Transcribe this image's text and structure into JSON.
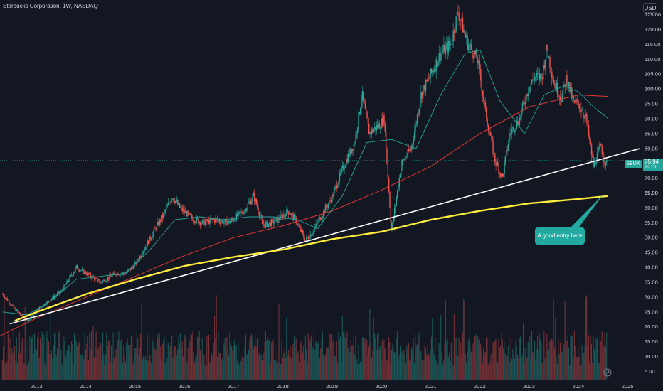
{
  "header": {
    "title": "Starbucks Corporation, 1W, NASDAQ",
    "currency": "USD"
  },
  "price_marker": {
    "symbol": "SBUX",
    "price": "75.94",
    "time": "2d 17h",
    "other_level": "65.00"
  },
  "annotation": {
    "text": "A good entry here"
  },
  "colors": {
    "background": "#131722",
    "up": "#26a69a",
    "down": "#ef5350",
    "ma_short": "#26a69a",
    "ma_long": "#e53935",
    "trendline": "#ffffff",
    "support": "#ffeb3b",
    "callout": "#22a9a0"
  },
  "icons": {
    "replay": "replay-icon"
  },
  "chart_data": {
    "type": "candlestick",
    "title": "Starbucks Corporation, 1W, NASDAQ",
    "xlabel": "",
    "ylabel": "",
    "x_ticks": [
      "2013",
      "2014",
      "2015",
      "2016",
      "2017",
      "2018",
      "2019",
      "2020",
      "2021",
      "2022",
      "2023",
      "2024",
      "2025"
    ],
    "y_ticks": [
      5,
      10,
      15,
      20,
      25,
      30,
      35,
      40,
      45,
      50,
      55,
      60,
      65,
      70,
      75,
      80,
      85,
      90,
      95,
      100,
      105,
      110,
      115,
      120,
      125
    ],
    "ylim": [
      2,
      128
    ],
    "xlim": [
      2012.25,
      2025.25
    ],
    "last_price": 75.94,
    "price_path": [
      [
        2012.3,
        31
      ],
      [
        2012.55,
        26
      ],
      [
        2012.8,
        22
      ],
      [
        2013.1,
        27
      ],
      [
        2013.5,
        32
      ],
      [
        2013.8,
        40
      ],
      [
        2014.0,
        38
      ],
      [
        2014.3,
        35
      ],
      [
        2014.6,
        38
      ],
      [
        2014.8,
        38
      ],
      [
        2015.0,
        41
      ],
      [
        2015.3,
        50
      ],
      [
        2015.55,
        57
      ],
      [
        2015.75,
        64
      ],
      [
        2015.9,
        60
      ],
      [
        2016.1,
        57
      ],
      [
        2016.35,
        55
      ],
      [
        2016.6,
        56
      ],
      [
        2016.9,
        55
      ],
      [
        2017.2,
        59
      ],
      [
        2017.4,
        64
      ],
      [
        2017.6,
        54
      ],
      [
        2017.9,
        56
      ],
      [
        2018.1,
        59
      ],
      [
        2018.25,
        56
      ],
      [
        2018.45,
        49
      ],
      [
        2018.6,
        52
      ],
      [
        2018.8,
        58
      ],
      [
        2019.0,
        64
      ],
      [
        2019.25,
        75
      ],
      [
        2019.45,
        82
      ],
      [
        2019.6,
        98
      ],
      [
        2019.75,
        85
      ],
      [
        2019.95,
        88
      ],
      [
        2020.05,
        90
      ],
      [
        2020.2,
        52
      ],
      [
        2020.4,
        75
      ],
      [
        2020.6,
        80
      ],
      [
        2020.8,
        98
      ],
      [
        2021.0,
        105
      ],
      [
        2021.2,
        112
      ],
      [
        2021.4,
        115
      ],
      [
        2021.55,
        126
      ],
      [
        2021.75,
        115
      ],
      [
        2021.95,
        110
      ],
      [
        2022.1,
        93
      ],
      [
        2022.3,
        76
      ],
      [
        2022.45,
        70
      ],
      [
        2022.6,
        85
      ],
      [
        2022.8,
        90
      ],
      [
        2022.95,
        99
      ],
      [
        2023.1,
        104
      ],
      [
        2023.25,
        104
      ],
      [
        2023.35,
        114
      ],
      [
        2023.5,
        102
      ],
      [
        2023.65,
        97
      ],
      [
        2023.75,
        104
      ],
      [
        2023.9,
        95
      ],
      [
        2024.0,
        95
      ],
      [
        2024.15,
        90
      ],
      [
        2024.3,
        74
      ],
      [
        2024.45,
        81
      ],
      [
        2024.55,
        74
      ],
      [
        2024.58,
        75.94
      ]
    ],
    "ma_short": [
      [
        2012.3,
        25
      ],
      [
        2012.8,
        24
      ],
      [
        2013.3,
        29
      ],
      [
        2013.8,
        36
      ],
      [
        2014.3,
        37
      ],
      [
        2014.8,
        38
      ],
      [
        2015.3,
        46
      ],
      [
        2015.8,
        56
      ],
      [
        2016.3,
        57
      ],
      [
        2016.8,
        56
      ],
      [
        2017.3,
        57
      ],
      [
        2017.8,
        57
      ],
      [
        2018.3,
        56
      ],
      [
        2018.7,
        53
      ],
      [
        2019.2,
        64
      ],
      [
        2019.7,
        82
      ],
      [
        2020.2,
        83
      ],
      [
        2020.7,
        80
      ],
      [
        2021.2,
        98
      ],
      [
        2021.7,
        112
      ],
      [
        2022.0,
        113
      ],
      [
        2022.4,
        96
      ],
      [
        2022.9,
        85
      ],
      [
        2023.3,
        98
      ],
      [
        2023.7,
        101
      ],
      [
        2024.0,
        99
      ],
      [
        2024.3,
        94
      ],
      [
        2024.6,
        90
      ]
    ],
    "ma_long": [
      [
        2012.25,
        17
      ],
      [
        2013.0,
        23
      ],
      [
        2014.0,
        30
      ],
      [
        2015.0,
        37
      ],
      [
        2016.0,
        44
      ],
      [
        2017.0,
        50
      ],
      [
        2018.0,
        54
      ],
      [
        2019.0,
        59
      ],
      [
        2020.0,
        66
      ],
      [
        2021.0,
        74
      ],
      [
        2022.0,
        85
      ],
      [
        2023.0,
        94
      ],
      [
        2024.0,
        98
      ],
      [
        2024.6,
        97.5
      ]
    ],
    "trendline": {
      "label": "",
      "points": [
        [
          2012.45,
          21
        ],
        [
          2025.25,
          80
        ]
      ]
    },
    "support_curve": [
      [
        2012.55,
        22
      ],
      [
        2013.0,
        25
      ],
      [
        2014.0,
        31
      ],
      [
        2015.0,
        36
      ],
      [
        2016.0,
        40.5
      ],
      [
        2017.0,
        43.5
      ],
      [
        2018.0,
        46
      ],
      [
        2019.0,
        49.5
      ],
      [
        2020.0,
        52
      ],
      [
        2021.0,
        56
      ],
      [
        2022.0,
        59
      ],
      [
        2023.0,
        61.5
      ],
      [
        2024.0,
        63
      ],
      [
        2024.6,
        64
      ]
    ],
    "volume_ylim": [
      0,
      40
    ],
    "grid": false,
    "legend": "none"
  }
}
